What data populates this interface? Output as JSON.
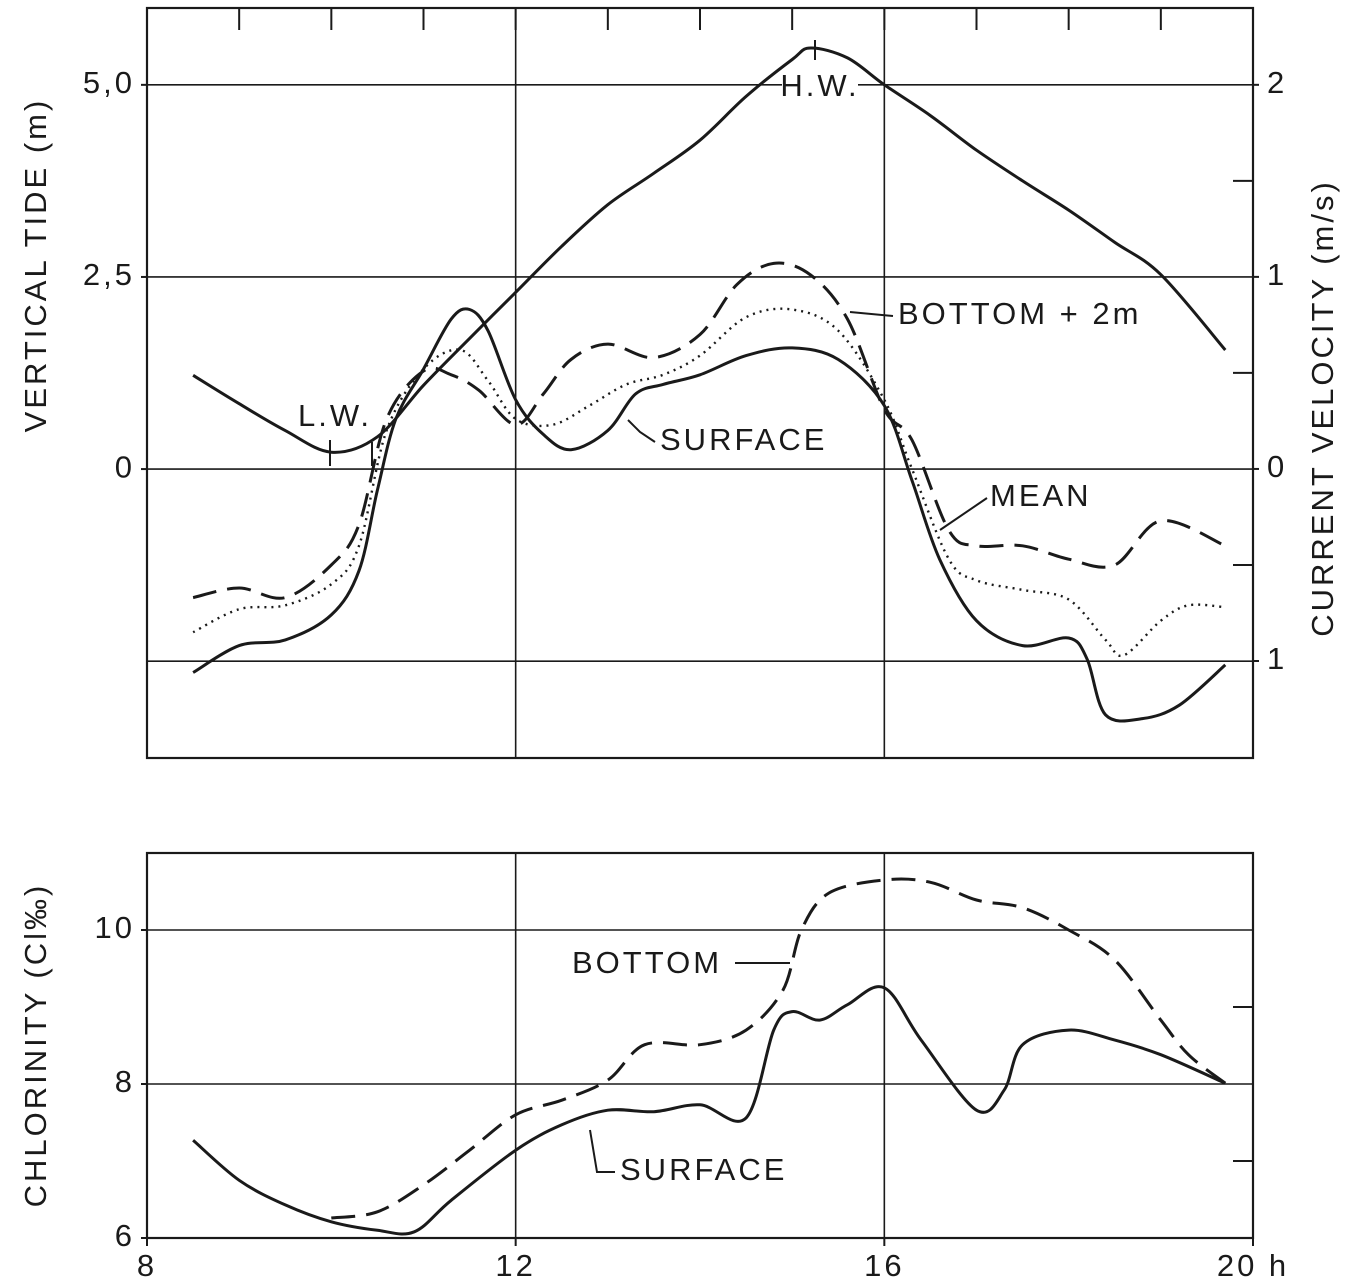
{
  "chart_data": [
    {
      "type": "line",
      "y_label": "VERTICAL TIDE (m)",
      "y2_label": "CURRENT VELOCITY (m/s)",
      "xlim": [
        8,
        20
      ],
      "xticks": [
        8,
        9,
        10,
        11,
        12,
        13,
        14,
        15,
        16,
        17,
        18,
        19,
        20
      ],
      "xgrid": [
        12,
        16
      ],
      "ylim": [
        -3.76,
        6.0
      ],
      "yticks": [
        0,
        {
          "value": 2.5,
          "label": "2,5"
        },
        {
          "value": 5,
          "label": "5,0"
        }
      ],
      "ygrid": [
        -2.5,
        0,
        2.5,
        5
      ],
      "y2lim": [
        -1.505,
        2.4
      ],
      "y2ticks": [
        {
          "value": -1,
          "label": "1"
        },
        0,
        1,
        2
      ],
      "y2ticks_minor": [
        -0.5,
        0.5,
        1.5
      ],
      "annotations": [
        "H.W.",
        "L.W."
      ],
      "series": [
        {
          "color": "#1a1a1a",
          "style": "solid",
          "x": [
            8.5,
            9,
            9.5,
            10,
            10.5,
            11,
            11.5,
            12,
            12.5,
            13,
            13.5,
            14,
            14.5,
            15,
            15.2,
            15.6,
            16,
            16.5,
            17,
            17.5,
            18,
            18.5,
            19,
            19.7
          ],
          "values": [
            1.22,
            0.85,
            0.5,
            0.22,
            0.42,
            1.09,
            1.7,
            2.3,
            2.9,
            3.44,
            3.85,
            4.28,
            4.85,
            5.33,
            5.48,
            5.35,
            5.0,
            4.6,
            4.15,
            3.75,
            3.37,
            2.95,
            2.53,
            1.55
          ]
        },
        {
          "name": "SURFACE",
          "color": "#1a1a1a",
          "style": "solid",
          "axis": "y2",
          "x": [
            8.5,
            9,
            9.5,
            10,
            10.3,
            10.5,
            10.7,
            11,
            11.3,
            11.5,
            11.7,
            12,
            12.3,
            12.6,
            13,
            13.3,
            13.6,
            14,
            14.5,
            15,
            15.5,
            16,
            16.3,
            16.6,
            17,
            17.5,
            18,
            18.2,
            18.4,
            18.8,
            19.2,
            19.7
          ],
          "values": [
            -1.06,
            -0.92,
            -0.89,
            -0.76,
            -0.53,
            -0.11,
            0.26,
            0.52,
            0.78,
            0.83,
            0.72,
            0.36,
            0.18,
            0.1,
            0.2,
            0.39,
            0.44,
            0.49,
            0.59,
            0.63,
            0.57,
            0.33,
            -0.06,
            -0.47,
            -0.79,
            -0.92,
            -0.88,
            -0.99,
            -1.28,
            -1.3,
            -1.23,
            -1.02
          ]
        },
        {
          "name": "BOTTOM + 2m",
          "color": "#1a1a1a",
          "style": "dashed",
          "axis": "y2",
          "x": [
            8.5,
            9,
            9.5,
            10,
            10.3,
            10.6,
            11,
            11.3,
            11.6,
            12,
            12.3,
            12.6,
            13,
            13.5,
            14,
            14.4,
            14.8,
            15.2,
            15.6,
            16,
            16.3,
            16.7,
            17,
            17.5,
            18,
            18.5,
            19,
            19.7
          ],
          "values": [
            -0.67,
            -0.62,
            -0.67,
            -0.5,
            -0.29,
            0.26,
            0.51,
            0.49,
            0.41,
            0.23,
            0.39,
            0.57,
            0.65,
            0.58,
            0.7,
            0.96,
            1.07,
            1.01,
            0.78,
            0.31,
            0.15,
            -0.32,
            -0.4,
            -0.4,
            -0.47,
            -0.5,
            -0.27,
            -0.4
          ]
        },
        {
          "name": "MEAN",
          "color": "#1a1a1a",
          "style": "dotted",
          "axis": "y2",
          "x": [
            8.5,
            9,
            9.5,
            10,
            10.3,
            10.6,
            11,
            11.4,
            11.7,
            12,
            12.4,
            12.8,
            13.2,
            13.6,
            14,
            14.5,
            15,
            15.5,
            16,
            16.3,
            16.7,
            17,
            17.5,
            18,
            18.4,
            18.6,
            19,
            19.3,
            19.7
          ],
          "values": [
            -0.85,
            -0.73,
            -0.71,
            -0.6,
            -0.4,
            0.2,
            0.52,
            0.62,
            0.46,
            0.26,
            0.23,
            0.33,
            0.44,
            0.49,
            0.59,
            0.79,
            0.83,
            0.72,
            0.36,
            0,
            -0.47,
            -0.58,
            -0.63,
            -0.68,
            -0.89,
            -0.97,
            -0.79,
            -0.71,
            -0.72
          ]
        }
      ]
    },
    {
      "type": "line",
      "y_label": "CHLORINITY (Cl‰)",
      "xlim": [
        8,
        20
      ],
      "xticks": [
        8,
        12,
        16,
        {
          "value": 20,
          "label": "20 h"
        }
      ],
      "xgrid": [
        12,
        16
      ],
      "ylim": [
        6,
        11
      ],
      "yticks": [
        6,
        8,
        10
      ],
      "yticks_minor": [
        7,
        9
      ],
      "ygrid": [
        8,
        10
      ],
      "series": [
        {
          "name": "SURFACE",
          "color": "#1a1a1a",
          "style": "solid",
          "x": [
            8.5,
            9,
            9.5,
            10,
            10.5,
            10.9,
            11.3,
            12,
            12.5,
            13,
            13.5,
            14,
            14.5,
            14.8,
            15,
            15.3,
            15.6,
            16,
            16.4,
            17,
            17.3,
            17.5,
            18,
            18.5,
            19,
            19.7
          ],
          "values": [
            7.27,
            6.75,
            6.43,
            6.21,
            6.1,
            6.08,
            6.49,
            7.14,
            7.47,
            7.66,
            7.64,
            7.73,
            7.56,
            8.7,
            8.94,
            8.83,
            9.03,
            9.25,
            8.57,
            7.66,
            7.92,
            8.51,
            8.7,
            8.57,
            8.38,
            8.01
          ]
        },
        {
          "name": "BOTTOM",
          "color": "#1a1a1a",
          "style": "dashed",
          "x": [
            10,
            10.5,
            11,
            11.5,
            12,
            12.5,
            13,
            13.4,
            14,
            14.5,
            14.9,
            15.1,
            15.4,
            16,
            16.5,
            17,
            17.5,
            18,
            18.5,
            19,
            19.3,
            19.7
          ],
          "values": [
            6.26,
            6.34,
            6.69,
            7.14,
            7.6,
            7.79,
            8.05,
            8.51,
            8.51,
            8.7,
            9.22,
            10.0,
            10.48,
            10.65,
            10.62,
            10.39,
            10.29,
            10.0,
            9.61,
            8.83,
            8.38,
            8.01
          ]
        }
      ]
    }
  ]
}
